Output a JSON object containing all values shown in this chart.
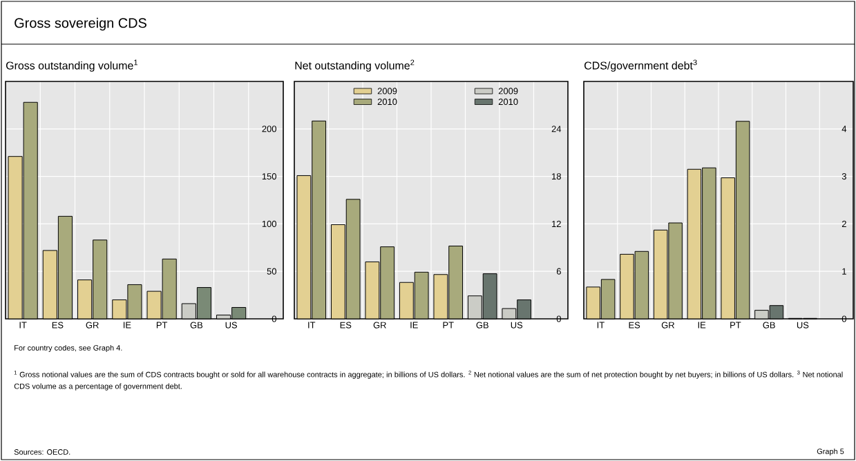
{
  "chart_data": [
    {
      "type": "other",
      "title": "Gross sovereign CDS",
      "annotations": [
        "For country codes, see Graph 4.",
        "$^{1}$ Gross notional values are the sum of CDS contracts bought or sold for all warehouse contracts in aggregate; in billions of US dollars. $^{2}$ Net notional values are the sum of net protection bought by net buyers; in billions of US dollars. $^{3}$ Net notional CDS volume as a percentage of government debt.",
        "Sources: OECD.",
        "Graph 5"
      ]
    },
    {
      "type": "bar",
      "title": "Gross outstanding volume$^{1}$",
      "categories": [
        "IT",
        "ES",
        "GR",
        "IE",
        "PT",
        "GB",
        "US"
      ],
      "series": [
        {
          "color": "#e3d092",
          "values": [
            171,
            72,
            41,
            20,
            29,
            null,
            null
          ]
        },
        {
          "color": "#a8aa7c",
          "values": [
            228,
            108,
            83,
            36,
            63,
            null,
            null
          ]
        },
        {
          "color": "#cbccc6",
          "values": [
            null,
            null,
            null,
            null,
            null,
            16,
            4
          ]
        },
        {
          "color": "#7a8a76",
          "values": [
            null,
            null,
            null,
            null,
            null,
            33,
            12
          ]
        }
      ],
      "ylim": [
        0,
        250
      ],
      "yticks": [
        0,
        50,
        100,
        150,
        200
      ],
      "grid": true,
      "legend": false
    },
    {
      "type": "bar",
      "title": "Net outstanding volume$^{2}$",
      "categories": [
        "IT",
        "ES",
        "GR",
        "IE",
        "PT",
        "GB",
        "US"
      ],
      "series": [
        {
          "name": "2009",
          "color": "#e3d092",
          "values": [
            18.1,
            11.9,
            7.2,
            4.6,
            5.6,
            null,
            null
          ]
        },
        {
          "name": "2010",
          "color": "#a8aa7c",
          "values": [
            25.0,
            15.1,
            9.1,
            5.9,
            9.2,
            null,
            null
          ]
        },
        {
          "name": "2009",
          "color": "#cbccc6",
          "values": [
            null,
            null,
            null,
            null,
            null,
            2.9,
            1.3
          ]
        },
        {
          "name": "2010",
          "color": "#68756e",
          "values": [
            null,
            null,
            null,
            null,
            null,
            5.7,
            2.4
          ]
        }
      ],
      "ylim": [
        0,
        30
      ],
      "yticks": [
        0,
        6,
        12,
        18,
        24
      ],
      "grid": true,
      "legend": "top"
    },
    {
      "type": "bar",
      "title": "CDS/government debt$^{3}$",
      "categories": [
        "IT",
        "ES",
        "GR",
        "IE",
        "PT",
        "GB",
        "US"
      ],
      "series": [
        {
          "color": "#e3d092",
          "values": [
            0.67,
            1.36,
            1.87,
            3.15,
            2.97,
            null,
            null
          ]
        },
        {
          "color": "#a8aa7c",
          "values": [
            0.83,
            1.42,
            2.02,
            3.18,
            4.16,
            null,
            null
          ]
        },
        {
          "color": "#cbccc6",
          "values": [
            null,
            null,
            null,
            null,
            null,
            0.18,
            0.01
          ]
        },
        {
          "color": "#68756e",
          "values": [
            null,
            null,
            null,
            null,
            null,
            0.28,
            0.01
          ]
        }
      ],
      "ylim": [
        0,
        5
      ],
      "yticks": [
        0,
        1,
        2,
        3,
        4
      ],
      "grid": true,
      "legend": false
    }
  ]
}
